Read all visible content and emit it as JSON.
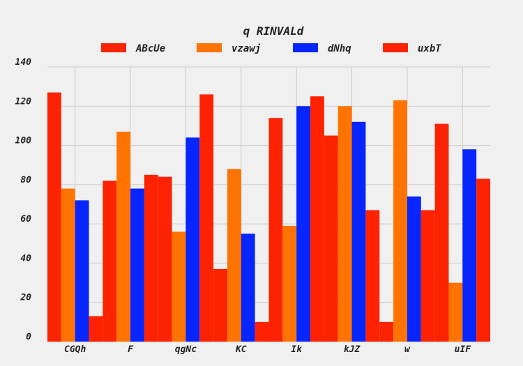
{
  "chart_data": {
    "type": "bar",
    "title": "q RINVALd",
    "xlabel": "",
    "ylabel": "",
    "categories": [
      "CGQh",
      "F",
      "qgNc",
      "KC",
      "Ik",
      "kJZ",
      "w",
      "uIF"
    ],
    "ylim": [
      0,
      140
    ],
    "yticks": [
      0,
      20,
      40,
      60,
      80,
      100,
      120,
      140
    ],
    "grid": true,
    "legend_position": "top",
    "series": [
      {
        "name": "ABcUe",
        "color": "#fc2300",
        "values": [
          127,
          82,
          84,
          37,
          114,
          105,
          10,
          111
        ]
      },
      {
        "name": "vzawj",
        "color": "#ff7300",
        "values": [
          78,
          107,
          56,
          88,
          59,
          120,
          123,
          30
        ]
      },
      {
        "name": "dNhq",
        "color": "#0625ff",
        "values": [
          72,
          78,
          104,
          55,
          120,
          112,
          74,
          98
        ]
      },
      {
        "name": "uxbT",
        "color": "#ff2200",
        "values": [
          13,
          85,
          126,
          10,
          125,
          67,
          67,
          83
        ]
      }
    ]
  }
}
